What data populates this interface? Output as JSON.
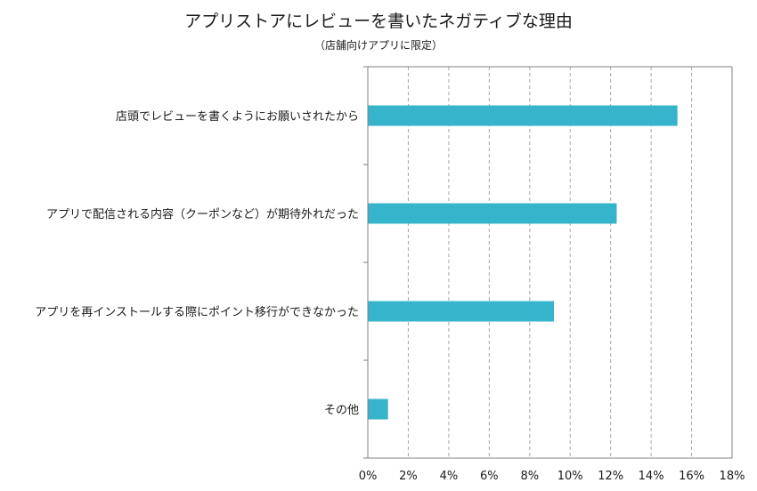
{
  "chart_data": {
    "type": "bar",
    "orientation": "horizontal",
    "title": "アプリストアにレビューを書いたネガティブな理由",
    "subtitle": "（店舗向けアプリに限定）",
    "categories": [
      "店頭でレビューを書くようにお願いされたから",
      "アプリで配信される内容（クーポンなど）が期待外れだった",
      "アプリを再インストールする際にポイント移行ができなかった",
      "その他"
    ],
    "values": [
      15.3,
      12.3,
      9.2,
      1.0
    ],
    "xlim": [
      0,
      18
    ],
    "x_ticks": [
      "0%",
      "2%",
      "4%",
      "6%",
      "8%",
      "10%",
      "12%",
      "14%",
      "16%",
      "18%"
    ],
    "xlabel": "",
    "ylabel": "",
    "grid": "vertical-dashed",
    "legend": "none",
    "bar_color": "#36b4cc"
  }
}
